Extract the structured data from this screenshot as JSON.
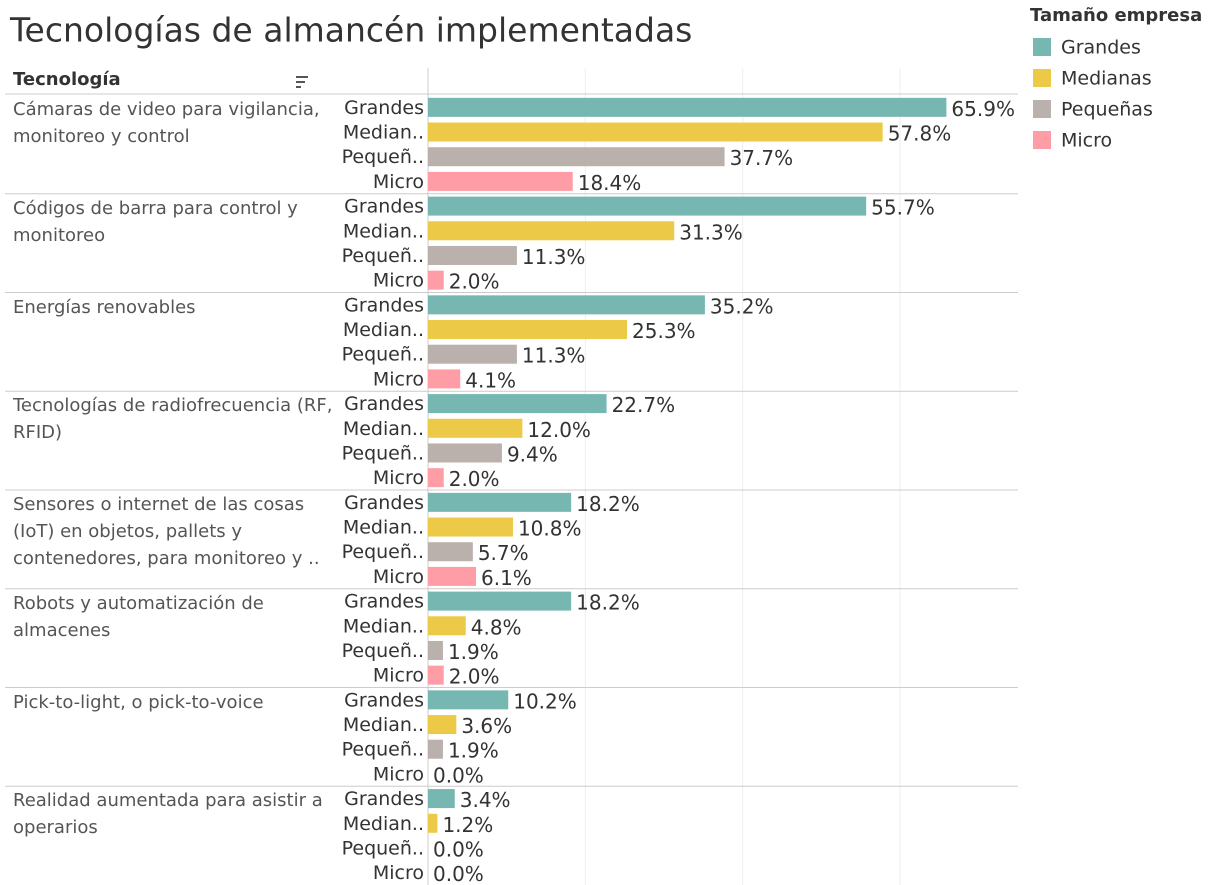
{
  "chart_data": {
    "type": "bar",
    "orientation": "horizontal",
    "title": "Tecnologías de almancén implementadas",
    "row_header": "Tecnología",
    "legend_title": "Tamaño empresa",
    "categories": [
      "Cámaras de video para vigilancia, monitoreo y control",
      "Códigos de barra para control y monitoreo",
      "Energías renovables",
      "Tecnologías de radiofrecuencia (RF, RFID)",
      "Sensores o internet de las cosas (IoT) en objetos, pallets y contenedores, para monitoreo y ..",
      "Robots y automatización de almacenes",
      "Pick-to-light, o pick-to-voice",
      "Realidad aumentada para asistir a operarios"
    ],
    "group_labels": [
      "Grandes",
      "Median..",
      "Pequeñ..",
      "Micro"
    ],
    "series": [
      {
        "name": "Grandes",
        "color": "#76b7b2",
        "values": [
          65.9,
          55.7,
          35.2,
          22.7,
          18.2,
          18.2,
          10.2,
          3.4
        ],
        "value_labels": [
          "65.9%",
          "55.7%",
          "35.2%",
          "22.7%",
          "18.2%",
          "18.2%",
          "10.2%",
          "3.4%"
        ]
      },
      {
        "name": "Medianas",
        "color": "#edc948",
        "values": [
          57.8,
          31.3,
          25.3,
          12.0,
          10.8,
          4.8,
          3.6,
          1.2
        ],
        "value_labels": [
          "57.8%",
          "31.3%",
          "25.3%",
          "12.0%",
          "10.8%",
          "4.8%",
          "3.6%",
          "1.2%"
        ]
      },
      {
        "name": "Pequeñas",
        "color": "#bab0ac",
        "values": [
          37.7,
          11.3,
          11.3,
          9.4,
          5.7,
          1.9,
          1.9,
          0.0
        ],
        "value_labels": [
          "37.7%",
          "11.3%",
          "11.3%",
          "9.4%",
          "5.7%",
          "1.9%",
          "1.9%",
          "0.0%"
        ]
      },
      {
        "name": "Micro",
        "color": "#ff9da7",
        "values": [
          18.4,
          2.0,
          4.1,
          2.0,
          6.1,
          2.0,
          0.0,
          0.0
        ],
        "value_labels": [
          "18.4%",
          "2.0%",
          "4.1%",
          "2.0%",
          "6.1%",
          "2.0%",
          "0.0%",
          "0.0%"
        ]
      }
    ],
    "xlim": [
      0,
      75
    ],
    "xticks": [
      0,
      20,
      40,
      60
    ],
    "grid": true,
    "legend": "right"
  }
}
